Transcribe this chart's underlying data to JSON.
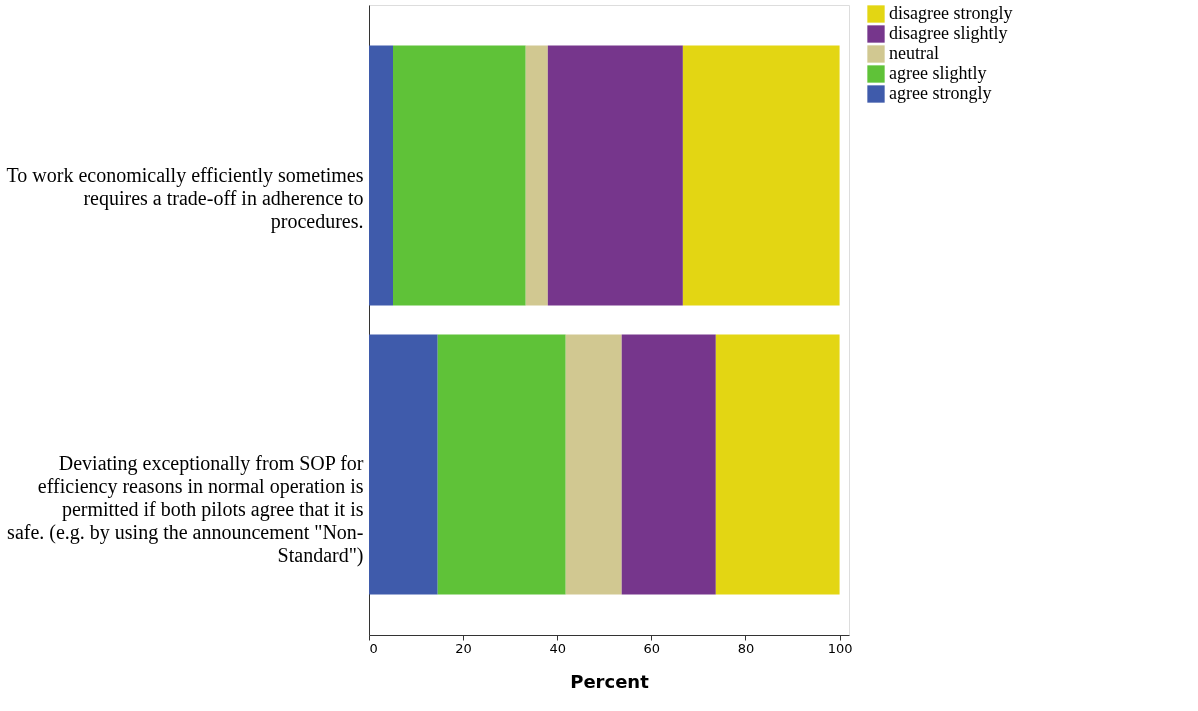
{
  "chart_data": {
    "type": "bar",
    "orientation": "horizontal",
    "stacked": true,
    "xlabel": "Percent",
    "categories": [
      "To work economically efficiently sometimes requires a trade-off in adherence to procedures.",
      "Deviating exceptionally from SOP for efficiency reasons in normal operation is permitted if both pilots agree that it is safe. (e.g. by using the announcement \"Non-Standard\")"
    ],
    "series": [
      {
        "name": "agree strongly",
        "color": "#3f5bab",
        "values": [
          5.1,
          14.6
        ]
      },
      {
        "name": "agree slightly",
        "color": "#5fc238",
        "values": [
          28.2,
          27.2
        ]
      },
      {
        "name": "neutral",
        "color": "#d1c891",
        "values": [
          4.7,
          11.9
        ]
      },
      {
        "name": "disagree slightly",
        "color": "#76368c",
        "values": [
          28.7,
          20.0
        ]
      },
      {
        "name": "disagree strongly",
        "color": "#e3d613",
        "values": [
          33.3,
          26.3
        ]
      }
    ],
    "xlim": [
      0,
      102
    ],
    "xticks": [
      0,
      20,
      40,
      60,
      80,
      100
    ],
    "grid": false,
    "legend": "top right"
  }
}
